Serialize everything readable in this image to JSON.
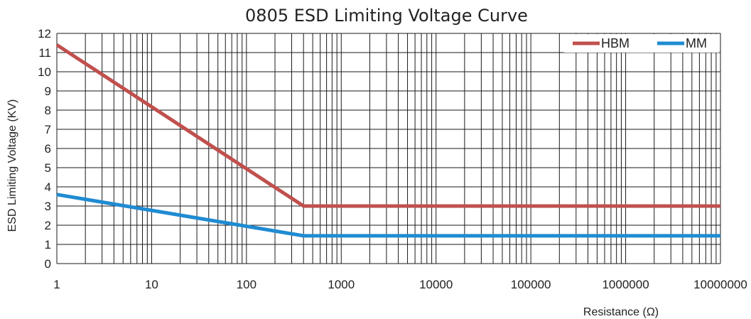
{
  "chart_data": {
    "type": "line",
    "title": "0805 ESD Limiting Voltage Curve",
    "xlabel": "Resistance (Ω)",
    "ylabel": "ESD Limiting Voltage (KV)",
    "x_scale": "log",
    "xlim": [
      1,
      10000000
    ],
    "ylim": [
      0,
      12
    ],
    "x_ticks": [
      "1",
      "10",
      "100",
      "1000",
      "10000",
      "100000",
      "1000000",
      "10000000"
    ],
    "y_ticks": [
      "0",
      "1",
      "2",
      "3",
      "4",
      "5",
      "6",
      "7",
      "8",
      "9",
      "10",
      "11",
      "12"
    ],
    "grid": true,
    "legend_position": "top-right",
    "series": [
      {
        "name": "HBM",
        "color": "#c0504d",
        "points": [
          [
            1,
            11.4
          ],
          [
            400,
            3.0
          ],
          [
            10000000,
            3.0
          ]
        ]
      },
      {
        "name": "MM",
        "color": "#1f8bd2",
        "points": [
          [
            1,
            3.6
          ],
          [
            400,
            1.45
          ],
          [
            10000000,
            1.45
          ]
        ]
      }
    ]
  }
}
